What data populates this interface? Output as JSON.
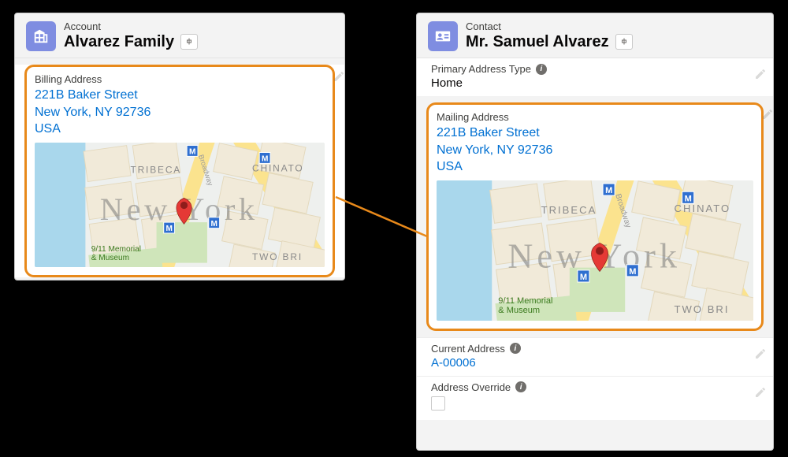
{
  "colors": {
    "highlight_border": "#e8891a",
    "link": "#0070d2",
    "icon_bg": "#7f8de1",
    "page_bg": "#000000",
    "card_bg": "#f3f3f3",
    "text": "#080707",
    "muted": "#3e3e3c"
  },
  "account": {
    "object_type": "Account",
    "name": "Alvarez Family",
    "billing": {
      "label": "Billing Address",
      "line1": "221B Baker Street",
      "line2": "New York, NY 92736",
      "line3": "USA"
    }
  },
  "contact": {
    "object_type": "Contact",
    "name": "Mr. Samuel Alvarez",
    "primary_address_type": {
      "label": "Primary Address Type",
      "value": "Home"
    },
    "mailing": {
      "label": "Mailing Address",
      "line1": "221B Baker Street",
      "line2": "New York, NY 92736",
      "line3": "USA"
    },
    "current_address": {
      "label": "Current Address",
      "value": "A-00006"
    },
    "address_override": {
      "label": "Address Override",
      "checked": false
    }
  },
  "map": {
    "city_label": "New York",
    "labels": {
      "tribeca": "TRIBECA",
      "chinatown": "CHINATO",
      "two_bridges": "TWO BRI",
      "broadway": "Broadway",
      "poi": "9/11 Memorial\n& Museum"
    },
    "metro_glyph": "M",
    "colors": {
      "water": "#a9d7ec",
      "block": "#f1ead9",
      "block_border": "#e3d8bc",
      "park": "#cfe5ba",
      "road": "#fbe38e",
      "big_label": "rgba(120,120,120,.55)",
      "metro_bg": "#2f6fd0",
      "pin": "#e53935",
      "pin_dark": "#8f1d1b"
    }
  },
  "connector": {
    "color": "#e8891a",
    "width": 2,
    "from_card": "account.billing",
    "to_card": "contact.mailing"
  }
}
